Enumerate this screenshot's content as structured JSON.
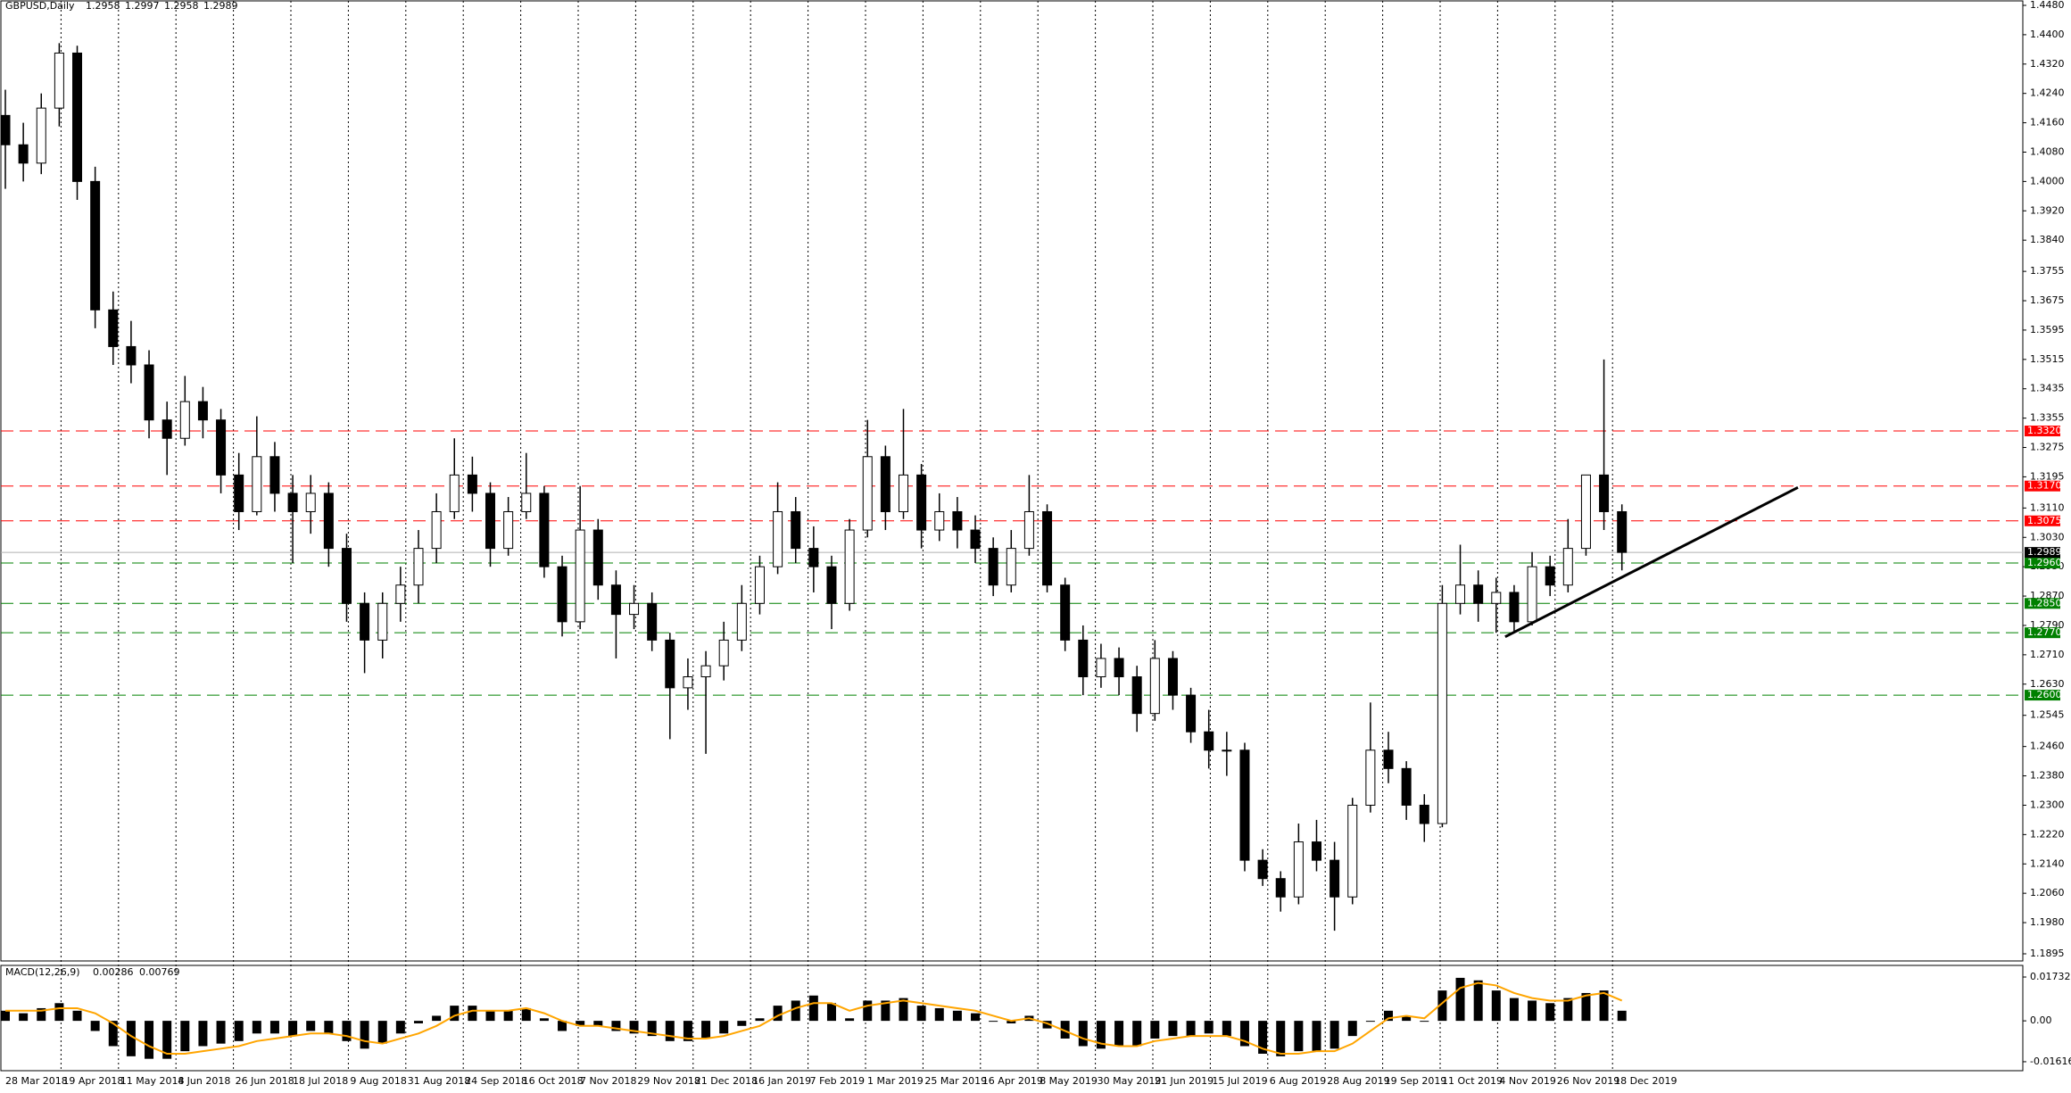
{
  "chart_data": {
    "type": "candlestick",
    "title": "GBPUSD,Daily",
    "ohlc": [
      1.2958,
      1.2997,
      1.2958,
      1.2989
    ],
    "categories": [
      "28 Mar 2018",
      "19 Apr 2018",
      "11 May 2018",
      "4 Jun 2018",
      "26 Jun 2018",
      "18 Jul 2018",
      "9 Aug 2018",
      "31 Aug 2018",
      "24 Sep 2018",
      "16 Oct 2018",
      "7 Nov 2018",
      "29 Nov 2018",
      "21 Dec 2018",
      "16 Jan 2019",
      "7 Feb 2019",
      "1 Mar 2019",
      "25 Mar 2019",
      "16 Apr 2019",
      "8 May 2019",
      "30 May 2019",
      "21 Jun 2019",
      "15 Jul 2019",
      "6 Aug 2019",
      "28 Aug 2019",
      "19 Sep 2019",
      "11 Oct 2019",
      "4 Nov 2019",
      "26 Nov 2019",
      "18 Dec 2019"
    ],
    "candles": [
      [
        1.418,
        1.425,
        1.398,
        1.41
      ],
      [
        1.41,
        1.416,
        1.4,
        1.405
      ],
      [
        1.405,
        1.424,
        1.402,
        1.42
      ],
      [
        1.42,
        1.4377,
        1.415,
        1.435
      ],
      [
        1.435,
        1.437,
        1.395,
        1.4
      ],
      [
        1.4,
        1.404,
        1.36,
        1.365
      ],
      [
        1.365,
        1.37,
        1.35,
        1.355
      ],
      [
        1.355,
        1.362,
        1.345,
        1.35
      ],
      [
        1.35,
        1.354,
        1.33,
        1.335
      ],
      [
        1.335,
        1.34,
        1.32,
        1.33
      ],
      [
        1.33,
        1.347,
        1.328,
        1.34
      ],
      [
        1.34,
        1.344,
        1.33,
        1.335
      ],
      [
        1.335,
        1.338,
        1.315,
        1.32
      ],
      [
        1.32,
        1.326,
        1.305,
        1.31
      ],
      [
        1.31,
        1.336,
        1.309,
        1.325
      ],
      [
        1.325,
        1.329,
        1.31,
        1.315
      ],
      [
        1.315,
        1.32,
        1.296,
        1.31
      ],
      [
        1.31,
        1.32,
        1.304,
        1.315
      ],
      [
        1.315,
        1.318,
        1.295,
        1.3
      ],
      [
        1.3,
        1.304,
        1.28,
        1.285
      ],
      [
        1.285,
        1.288,
        1.266,
        1.275
      ],
      [
        1.275,
        1.288,
        1.27,
        1.285
      ],
      [
        1.285,
        1.295,
        1.28,
        1.29
      ],
      [
        1.29,
        1.305,
        1.285,
        1.3
      ],
      [
        1.3,
        1.315,
        1.296,
        1.31
      ],
      [
        1.31,
        1.33,
        1.308,
        1.32
      ],
      [
        1.32,
        1.325,
        1.31,
        1.315
      ],
      [
        1.315,
        1.318,
        1.295,
        1.3
      ],
      [
        1.3,
        1.314,
        1.298,
        1.31
      ],
      [
        1.31,
        1.326,
        1.308,
        1.315
      ],
      [
        1.315,
        1.317,
        1.292,
        1.295
      ],
      [
        1.295,
        1.298,
        1.276,
        1.28
      ],
      [
        1.28,
        1.317,
        1.278,
        1.305
      ],
      [
        1.305,
        1.308,
        1.286,
        1.29
      ],
      [
        1.29,
        1.294,
        1.27,
        1.282
      ],
      [
        1.282,
        1.29,
        1.278,
        1.285
      ],
      [
        1.285,
        1.288,
        1.272,
        1.275
      ],
      [
        1.275,
        1.277,
        1.248,
        1.262
      ],
      [
        1.262,
        1.27,
        1.256,
        1.265
      ],
      [
        1.265,
        1.272,
        1.244,
        1.268
      ],
      [
        1.268,
        1.28,
        1.264,
        1.275
      ],
      [
        1.275,
        1.29,
        1.272,
        1.285
      ],
      [
        1.285,
        1.298,
        1.282,
        1.295
      ],
      [
        1.295,
        1.318,
        1.293,
        1.31
      ],
      [
        1.31,
        1.314,
        1.296,
        1.3
      ],
      [
        1.3,
        1.306,
        1.288,
        1.295
      ],
      [
        1.295,
        1.298,
        1.278,
        1.285
      ],
      [
        1.285,
        1.308,
        1.283,
        1.305
      ],
      [
        1.305,
        1.335,
        1.303,
        1.325
      ],
      [
        1.325,
        1.328,
        1.305,
        1.31
      ],
      [
        1.31,
        1.338,
        1.308,
        1.32
      ],
      [
        1.32,
        1.323,
        1.3,
        1.305
      ],
      [
        1.305,
        1.315,
        1.302,
        1.31
      ],
      [
        1.31,
        1.314,
        1.3,
        1.305
      ],
      [
        1.305,
        1.309,
        1.296,
        1.3
      ],
      [
        1.3,
        1.303,
        1.287,
        1.29
      ],
      [
        1.29,
        1.305,
        1.288,
        1.3
      ],
      [
        1.3,
        1.32,
        1.298,
        1.31
      ],
      [
        1.31,
        1.312,
        1.288,
        1.29
      ],
      [
        1.29,
        1.292,
        1.272,
        1.275
      ],
      [
        1.275,
        1.279,
        1.26,
        1.265
      ],
      [
        1.265,
        1.274,
        1.262,
        1.27
      ],
      [
        1.27,
        1.273,
        1.26,
        1.265
      ],
      [
        1.265,
        1.268,
        1.25,
        1.255
      ],
      [
        1.255,
        1.275,
        1.253,
        1.27
      ],
      [
        1.27,
        1.272,
        1.256,
        1.26
      ],
      [
        1.26,
        1.262,
        1.247,
        1.25
      ],
      [
        1.25,
        1.256,
        1.24,
        1.245
      ],
      [
        1.245,
        1.25,
        1.238,
        1.245
      ],
      [
        1.245,
        1.247,
        1.212,
        1.215
      ],
      [
        1.215,
        1.218,
        1.208,
        1.21
      ],
      [
        1.21,
        1.212,
        1.201,
        1.205
      ],
      [
        1.205,
        1.225,
        1.203,
        1.22
      ],
      [
        1.22,
        1.226,
        1.212,
        1.215
      ],
      [
        1.215,
        1.22,
        1.1958,
        1.205
      ],
      [
        1.205,
        1.232,
        1.203,
        1.23
      ],
      [
        1.23,
        1.258,
        1.228,
        1.245
      ],
      [
        1.245,
        1.25,
        1.236,
        1.24
      ],
      [
        1.24,
        1.242,
        1.226,
        1.23
      ],
      [
        1.23,
        1.233,
        1.22,
        1.225
      ],
      [
        1.225,
        1.29,
        1.224,
        1.285
      ],
      [
        1.285,
        1.301,
        1.282,
        1.29
      ],
      [
        1.29,
        1.294,
        1.28,
        1.285
      ],
      [
        1.285,
        1.292,
        1.277,
        1.288
      ],
      [
        1.288,
        1.29,
        1.277,
        1.28
      ],
      [
        1.28,
        1.299,
        1.279,
        1.295
      ],
      [
        1.295,
        1.298,
        1.287,
        1.29
      ],
      [
        1.29,
        1.308,
        1.288,
        1.3
      ],
      [
        1.3,
        1.32,
        1.298,
        1.32
      ],
      [
        1.32,
        1.3515,
        1.305,
        1.31
      ],
      [
        1.31,
        1.312,
        1.294,
        1.2989
      ]
    ],
    "ylim": [
      1.1895,
      1.448
    ],
    "yticks": [
      {
        "value": 1.448,
        "label": "1.4480"
      },
      {
        "value": 1.44,
        "label": "1.4400"
      },
      {
        "value": 1.432,
        "label": "1.4320"
      },
      {
        "value": 1.424,
        "label": "1.4240"
      },
      {
        "value": 1.416,
        "label": "1.4160"
      },
      {
        "value": 1.408,
        "label": "1.4080"
      },
      {
        "value": 1.4,
        "label": "1.4000"
      },
      {
        "value": 1.392,
        "label": "1.3920"
      },
      {
        "value": 1.384,
        "label": "1.3840"
      },
      1.3755,
      1.3675,
      1.3595,
      1.3515,
      1.3435,
      1.3355,
      1.3275,
      1.3195,
      {
        "value": 1.311,
        "label": "1.3110"
      },
      {
        "value": 1.303,
        "label": "1.3030"
      },
      {
        "value": 1.295,
        "label": "1.2950"
      },
      {
        "value": 1.287,
        "label": "1.2870"
      },
      {
        "value": 1.279,
        "label": "1.2790"
      },
      {
        "value": 1.271,
        "label": "1.2710"
      },
      {
        "value": 1.263,
        "label": "1.2630"
      },
      1.2545,
      {
        "value": 1.246,
        "label": "1.2460"
      },
      {
        "value": 1.238,
        "label": "1.2380"
      },
      {
        "value": 1.23,
        "label": "1.2300"
      },
      {
        "value": 1.222,
        "label": "1.2220"
      },
      {
        "value": 1.214,
        "label": "1.2140"
      },
      {
        "value": 1.206,
        "label": "1.2060"
      },
      {
        "value": 1.198,
        "label": "1.1980"
      },
      1.1895
    ],
    "levels": [
      {
        "value": 1.332,
        "label": "1.3320",
        "color": "#ff0000"
      },
      {
        "value": 1.317,
        "label": "1.3170",
        "color": "#ff0000"
      },
      {
        "value": 1.3075,
        "label": "1.3075",
        "color": "#ff0000"
      },
      {
        "value": 1.296,
        "label": "1.2960",
        "color": "#008000"
      },
      {
        "value": 1.285,
        "label": "1.2850",
        "color": "#008000"
      },
      {
        "value": 1.277,
        "label": "1.2770",
        "color": "#008000"
      },
      {
        "value": 1.26,
        "label": "1.2600",
        "color": "#008000"
      }
    ],
    "current_price": 1.2989,
    "trendline": {
      "start": 1.2759,
      "end": 1.3166
    },
    "macd": {
      "title": "MACD(12,26,9)",
      "readout": [
        0.00286,
        0.00769
      ],
      "ylim": [
        -0.019,
        0.0205
      ],
      "yticks": [
        0.01732,
        {
          "value": 0,
          "label": "0.00"
        },
        -0.01616
      ],
      "histogram": [
        0.004,
        0.003,
        0.005,
        0.007,
        0.004,
        -0.004,
        -0.01,
        -0.014,
        -0.015,
        -0.015,
        -0.012,
        -0.01,
        -0.009,
        -0.008,
        -0.005,
        -0.005,
        -0.006,
        -0.004,
        -0.005,
        -0.008,
        -0.011,
        -0.009,
        -0.005,
        -0.001,
        0.002,
        0.006,
        0.006,
        0.004,
        0.004,
        0.005,
        0.001,
        -0.004,
        -0.002,
        -0.002,
        -0.004,
        -0.005,
        -0.006,
        -0.008,
        -0.008,
        -0.007,
        -0.005,
        -0.002,
        0.001,
        0.006,
        0.008,
        0.01,
        0.007,
        0.001,
        0.008,
        0.008,
        0.009,
        0.006,
        0.005,
        0.004,
        0.003,
        0,
        -0.001,
        0.002,
        -0.003,
        -0.007,
        -0.01,
        -0.011,
        -0.01,
        -0.01,
        -0.007,
        -0.006,
        -0.006,
        -0.005,
        -0.006,
        -0.01,
        -0.013,
        -0.014,
        -0.012,
        -0.012,
        -0.011,
        -0.006,
        0,
        0.004,
        0.002,
        0,
        0.012,
        0.017,
        0.016,
        0.012,
        0.009,
        0.008,
        0.007,
        0.009,
        0.011,
        0.012,
        0.004
      ],
      "signal": [
        0.004,
        0.004,
        0.004,
        0.005,
        0.005,
        0.003,
        -0.001,
        -0.006,
        -0.01,
        -0.013,
        -0.013,
        -0.012,
        -0.011,
        -0.01,
        -0.008,
        -0.007,
        -0.006,
        -0.005,
        -0.005,
        -0.006,
        -0.008,
        -0.009,
        -0.007,
        -0.005,
        -0.002,
        0.002,
        0.004,
        0.004,
        0.004,
        0.005,
        0.003,
        0,
        -0.002,
        -0.002,
        -0.003,
        -0.004,
        -0.005,
        -0.006,
        -0.007,
        -0.007,
        -0.006,
        -0.004,
        -0.002,
        0.002,
        0.005,
        0.007,
        0.007,
        0.004,
        0.006,
        0.007,
        0.008,
        0.007,
        0.006,
        0.005,
        0.004,
        0.002,
        0,
        0.001,
        -0.001,
        -0.004,
        -0.007,
        -0.009,
        -0.01,
        -0.01,
        -0.008,
        -0.007,
        -0.006,
        -0.006,
        -0.006,
        -0.008,
        -0.011,
        -0.013,
        -0.013,
        -0.012,
        -0.012,
        -0.009,
        -0.004,
        0.001,
        0.002,
        0.001,
        0.007,
        0.013,
        0.015,
        0.014,
        0.011,
        0.009,
        0.008,
        0.008,
        0.01,
        0.011,
        0.008
      ],
      "signal_color": "#ffa500"
    }
  }
}
